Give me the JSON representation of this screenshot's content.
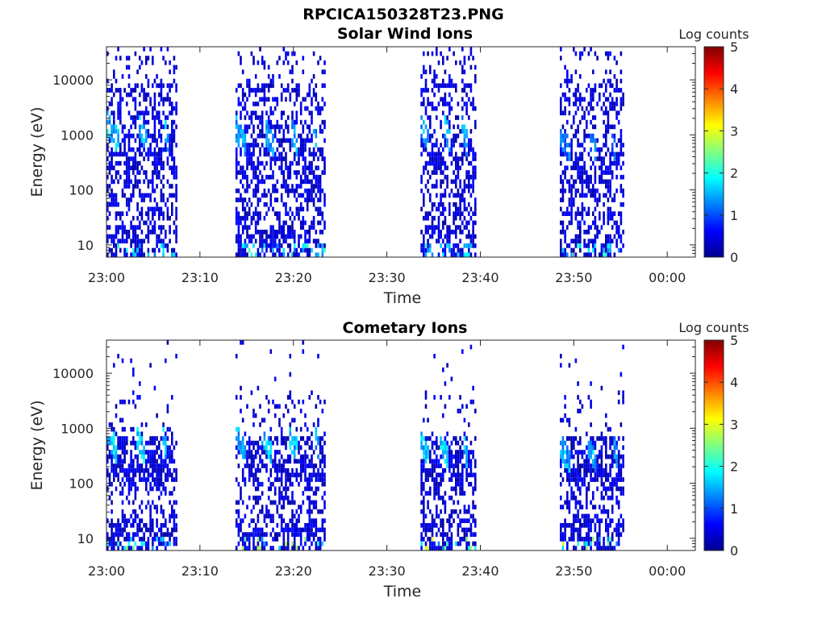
{
  "figure_title": "RPCICA150328T23.PNG",
  "colors": {
    "jet": [
      "#00008f",
      "#0000ff",
      "#0080ff",
      "#00ffff",
      "#80ff80",
      "#ffff00",
      "#ff8000",
      "#ff0000",
      "#800000"
    ],
    "axes": "#262626",
    "background": "#ffffff"
  },
  "chart_data": [
    {
      "type": "heatmap",
      "title": "Solar Wind Ions",
      "xlabel": "Time",
      "ylabel": "Energy (eV)",
      "colorbar_label": "Log counts",
      "y_scale": "log",
      "ylim": [
        6,
        40000
      ],
      "y_ticks": [
        10,
        100,
        1000,
        10000
      ],
      "y_tick_labels": [
        "10",
        "100",
        "1000",
        "10000"
      ],
      "x_ticks": [
        "23:00",
        "23:10",
        "23:20",
        "23:30",
        "23:40",
        "23:50",
        "00:00"
      ],
      "x_range_minutes": [
        0,
        63
      ],
      "colorbar_range": [
        0,
        5
      ],
      "colorbar_ticks": [
        "0",
        "1",
        "2",
        "3",
        "4",
        "5"
      ],
      "grid": false,
      "scan_blocks": [
        {
          "start": 0.0,
          "end": 7.4,
          "sub_scans": [
            0.0,
            3.3,
            6.0
          ],
          "peak_energy": 500,
          "peak_level": 1.9
        },
        {
          "start": 13.8,
          "end": 23.4,
          "sub_scans": [
            13.8,
            16.8,
            19.6,
            22.0
          ],
          "peak_energy": 400,
          "peak_level": 1.7
        },
        {
          "start": 33.6,
          "end": 39.5,
          "sub_scans": [
            33.6,
            36.1,
            37.9
          ],
          "peak_energy": 450,
          "peak_level": 1.8
        },
        {
          "start": 48.5,
          "end": 55.3,
          "sub_scans": [
            48.5,
            51.6,
            53.9
          ],
          "peak_energy": 300,
          "peak_level": 1.4
        }
      ]
    },
    {
      "type": "heatmap",
      "title": "Cometary Ions",
      "xlabel": "Time",
      "ylabel": "Energy (eV)",
      "colorbar_label": "Log counts",
      "y_scale": "log",
      "ylim": [
        6,
        40000
      ],
      "y_ticks": [
        10,
        100,
        1000,
        10000
      ],
      "y_tick_labels": [
        "10",
        "100",
        "1000",
        "10000"
      ],
      "x_ticks": [
        "23:00",
        "23:10",
        "23:20",
        "23:30",
        "23:40",
        "23:50",
        "00:00"
      ],
      "x_range_minutes": [
        0,
        63
      ],
      "colorbar_range": [
        0,
        5
      ],
      "colorbar_ticks": [
        "0",
        "1",
        "2",
        "3",
        "4",
        "5"
      ],
      "grid": false,
      "scan_blocks": [
        {
          "start": 0.0,
          "end": 7.4,
          "sub_scans": [
            0.0,
            3.0,
            5.8
          ],
          "peak_energy": 250,
          "peak_level": 2.0
        },
        {
          "start": 13.8,
          "end": 23.4,
          "sub_scans": [
            13.8,
            16.5,
            19.4,
            22.2
          ],
          "peak_energy": 250,
          "peak_level": 1.9
        },
        {
          "start": 33.6,
          "end": 39.5,
          "sub_scans": [
            33.6,
            35.6,
            38.0
          ],
          "peak_energy": 200,
          "peak_level": 2.0
        },
        {
          "start": 48.5,
          "end": 55.3,
          "sub_scans": [
            48.5,
            51.4,
            54.2
          ],
          "peak_energy": 150,
          "peak_level": 1.8
        }
      ]
    }
  ]
}
